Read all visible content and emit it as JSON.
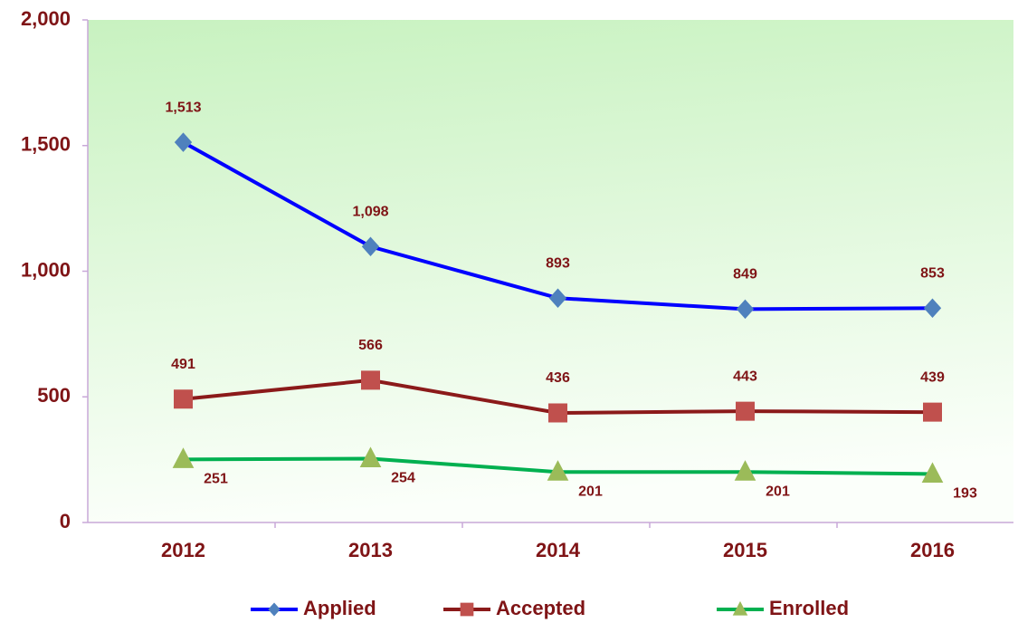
{
  "chart_data": {
    "type": "line",
    "categories": [
      "2012",
      "2013",
      "2014",
      "2015",
      "2016"
    ],
    "series": [
      {
        "name": "Applied",
        "color": "#0000ff",
        "marker": "diamond",
        "marker_color": "#4f81bd",
        "label_position": "above",
        "values": [
          1513,
          1098,
          893,
          849,
          853
        ],
        "value_labels": [
          "1,513",
          "1,098",
          "893",
          "849",
          "853"
        ]
      },
      {
        "name": "Accepted",
        "color": "#8b1a1a",
        "marker": "square",
        "marker_color": "#c0504d",
        "label_position": "above",
        "values": [
          491,
          566,
          436,
          443,
          439
        ],
        "value_labels": [
          "491",
          "566",
          "436",
          "443",
          "439"
        ]
      },
      {
        "name": "Enrolled",
        "color": "#00b050",
        "marker": "triangle",
        "marker_color": "#9bbb59",
        "label_position": "below",
        "values": [
          251,
          254,
          201,
          201,
          193
        ],
        "value_labels": [
          "251",
          "254",
          "201",
          "201",
          "193"
        ]
      }
    ],
    "ylim": [
      0,
      2000
    ],
    "yticks": [
      0,
      {
        "value": 500,
        "label": "500"
      },
      {
        "value": 1000,
        "label": "1,000"
      },
      {
        "value": 1500,
        "label": "1,500"
      },
      {
        "value": 2000,
        "label": "2,000"
      }
    ],
    "legend": "bottom"
  }
}
